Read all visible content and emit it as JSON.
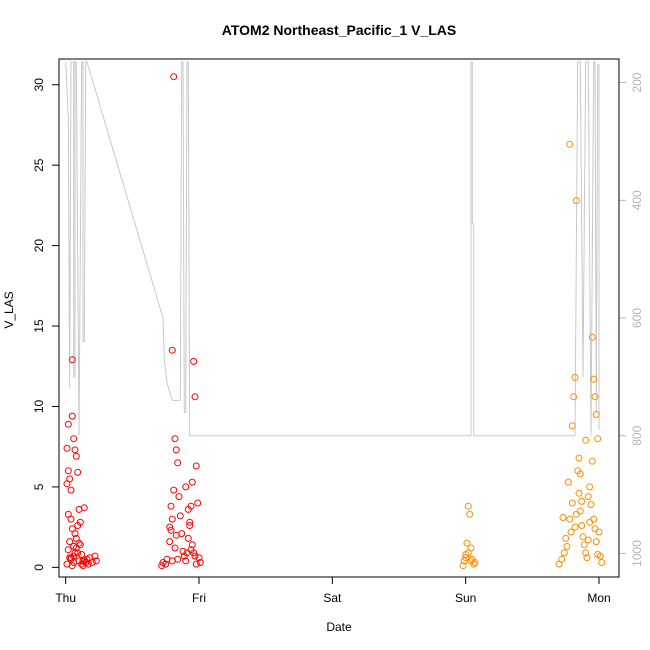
{
  "chart_data": {
    "type": "scatter",
    "title": "ATOM2 Northeast_Pacific_1 V_LAS",
    "xlabel": "Date",
    "ylabel": "V_LAS",
    "x_ticks": [
      "Thu",
      "Fri",
      "Sat",
      "Sun",
      "Mon"
    ],
    "xlim_days": [
      -0.05,
      4.15
    ],
    "ylim": [
      -0.6,
      31.6
    ],
    "y_ticks": [
      0,
      5,
      10,
      15,
      20,
      25,
      30
    ],
    "y2_ticks": [
      200,
      400,
      600,
      800,
      1000
    ],
    "y2_reversed": true,
    "y2_range": [
      160,
      1040
    ],
    "grid": false,
    "legend": "none",
    "colors": {
      "series_early": "#ff0000",
      "series_late": "#ff8c00",
      "depth_line": "#c8c8c8",
      "right_axis": "#b4b4b4"
    },
    "series": [
      {
        "color": "#ff0000",
        "x_days": [
          0.01,
          0.01,
          0.02,
          0.02,
          0.03,
          0.04,
          0.05,
          0.05,
          0.06,
          0.07,
          0.08,
          0.09,
          0.1,
          0.11,
          0.14,
          0.02,
          0.08,
          0.05,
          0.04,
          0.06,
          0.09,
          0.03,
          0.07,
          0.1,
          0.12,
          0.13,
          0.01,
          0.15,
          0.04,
          0.06,
          0.03,
          0.08,
          0.05,
          0.1,
          0.07,
          0.11,
          0.02,
          0.09,
          0.06,
          0.04,
          0.12,
          0.13,
          0.14,
          0.15,
          0.16,
          0.17,
          0.18,
          0.2,
          0.22,
          0.23,
          0.72,
          0.73,
          0.75,
          0.76,
          0.78,
          0.79,
          0.8,
          0.81,
          0.82,
          0.83,
          0.84,
          0.85,
          0.86,
          0.87,
          0.88,
          0.89,
          0.9,
          0.91,
          0.92,
          0.93,
          0.94,
          0.95,
          0.96,
          0.97,
          0.98,
          0.99,
          1.0,
          1.01,
          0.78,
          0.79,
          0.8,
          0.81,
          0.82,
          0.84,
          0.9,
          0.92,
          0.93,
          0.95,
          0.96,
          0.98,
          0.8,
          0.83,
          0.94,
          0.97
        ],
        "y": [
          5.2,
          7.4,
          8.9,
          6.0,
          5.5,
          4.8,
          12.9,
          9.4,
          8.0,
          7.3,
          6.9,
          5.9,
          3.6,
          2.8,
          3.7,
          1.1,
          1.8,
          2.4,
          3.0,
          1.3,
          0.9,
          0.6,
          2.1,
          1.5,
          0.8,
          0.4,
          0.2,
          0.3,
          0.5,
          0.7,
          1.6,
          1.2,
          0.1,
          0.4,
          0.9,
          1.4,
          3.3,
          2.6,
          0.3,
          0.6,
          0.2,
          0.1,
          0.4,
          0.3,
          0.5,
          0.2,
          0.6,
          0.3,
          0.7,
          0.4,
          0.1,
          0.3,
          0.2,
          0.5,
          2.5,
          3.8,
          13.5,
          30.5,
          8.0,
          7.3,
          6.5,
          4.4,
          3.2,
          2.1,
          1.0,
          0.7,
          0.4,
          0.9,
          1.8,
          2.6,
          3.8,
          5.3,
          12.8,
          10.6,
          6.3,
          4.0,
          0.6,
          0.3,
          1.6,
          2.3,
          3.0,
          4.8,
          1.2,
          0.5,
          5.0,
          3.6,
          2.8,
          1.4,
          0.9,
          0.2,
          0.4,
          2.0,
          1.1,
          0.7
        ]
      },
      {
        "color": "#ff8c00",
        "x_days": [
          2.98,
          2.99,
          3.0,
          3.01,
          3.02,
          3.03,
          3.04,
          3.05,
          3.06,
          3.07,
          3.0,
          3.02,
          3.04,
          3.7,
          3.72,
          3.73,
          3.75,
          3.77,
          3.78,
          3.8,
          3.81,
          3.82,
          3.83,
          3.84,
          3.85,
          3.86,
          3.87,
          3.88,
          3.89,
          3.9,
          3.91,
          3.92,
          3.93,
          3.94,
          3.95,
          3.96,
          3.97,
          3.98,
          3.99,
          4.0,
          4.01,
          4.02,
          3.74,
          3.76,
          3.79,
          3.8,
          3.83,
          3.85,
          3.87,
          3.9,
          3.93,
          3.95,
          3.96,
          3.97,
          3.98,
          3.99,
          3.78,
          3.82,
          3.86,
          3.92
        ],
        "y": [
          0.1,
          0.4,
          0.8,
          1.5,
          3.8,
          3.3,
          1.2,
          0.5,
          0.2,
          0.3,
          0.6,
          0.9,
          0.4,
          0.2,
          0.5,
          3.1,
          1.8,
          5.3,
          26.3,
          8.8,
          10.6,
          11.8,
          22.8,
          6.0,
          4.6,
          3.5,
          2.6,
          1.9,
          1.4,
          0.9,
          0.6,
          1.7,
          2.8,
          3.9,
          14.3,
          11.7,
          10.6,
          9.5,
          8.0,
          2.2,
          0.7,
          0.3,
          0.9,
          1.3,
          2.2,
          4.0,
          3.3,
          6.8,
          4.1,
          7.9,
          5.0,
          6.6,
          3.0,
          2.4,
          1.6,
          0.8,
          3.0,
          2.5,
          5.8,
          4.4
        ]
      }
    ],
    "depth_line": {
      "name": "",
      "x_days": [
        0.0,
        0.0,
        0.02,
        0.02,
        0.03,
        0.03,
        0.04,
        0.06,
        0.06,
        0.07,
        0.07,
        0.08,
        0.1,
        0.1,
        0.12,
        0.13,
        0.13,
        0.14,
        0.15,
        0.16,
        0.73,
        0.73,
        0.74,
        0.74,
        0.76,
        0.76,
        0.8,
        0.8,
        0.86,
        0.86,
        0.87,
        0.88,
        0.89,
        0.9,
        0.91,
        0.92,
        0.93,
        0.95,
        0.96,
        0.97,
        0.98,
        0.99,
        1.0,
        1.01,
        1.02,
        3.0,
        3.0,
        3.02,
        3.02,
        3.04,
        3.04,
        3.05,
        3.05,
        3.06,
        3.06,
        3.7,
        3.71,
        3.72,
        3.73,
        3.74,
        3.75,
        3.76,
        3.77,
        3.8,
        3.82,
        3.84,
        3.86,
        3.88,
        3.9,
        3.92,
        3.94,
        3.96,
        3.97,
        3.98,
        3.99,
        4.0,
        4.0
      ],
      "depth": [
        165,
        165,
        260,
        260,
        720,
        720,
        165,
        165,
        700,
        700,
        165,
        165,
        800,
        800,
        165,
        165,
        640,
        640,
        165,
        165,
        600,
        600,
        670,
        670,
        710,
        710,
        740,
        740,
        740,
        740,
        165,
        165,
        760,
        760,
        165,
        165,
        800,
        800,
        800,
        800,
        800,
        800,
        800,
        800,
        800,
        800,
        800,
        800,
        800,
        800,
        165,
        165,
        440,
        440,
        800,
        800,
        800,
        800,
        800,
        800,
        800,
        800,
        800,
        800,
        800,
        165,
        165,
        700,
        165,
        165,
        800,
        165,
        165,
        760,
        170,
        170,
        790
      ]
    }
  }
}
